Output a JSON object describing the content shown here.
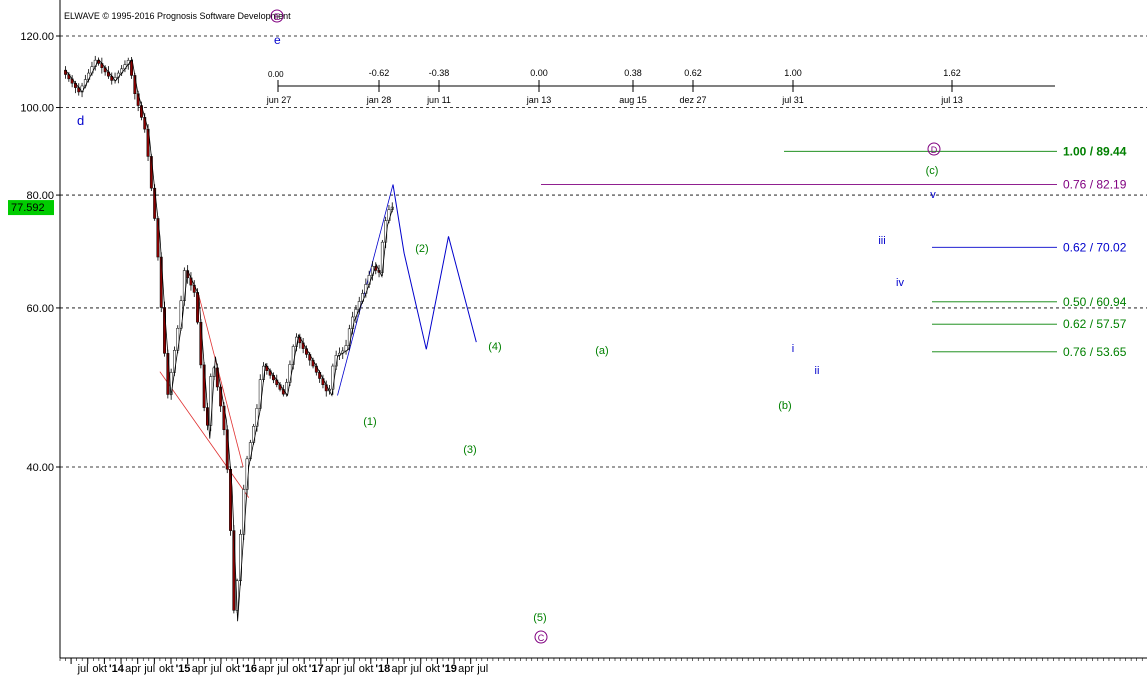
{
  "header": {
    "copyright": "ELWAVE © 1995-2016 Prognosis Software Development"
  },
  "colors": {
    "background": "#ffffff",
    "grid": "#000000",
    "candle_down": "#8b0000",
    "candle_up": "#000000",
    "wave_green": "#008000",
    "wave_blue": "#0000cc",
    "wave_purple": "#800080",
    "trendline_red": "#e03030",
    "target_green": "#008000",
    "target_purple": "#800080",
    "target_blue": "#0000cc",
    "price_tag_bg": "#00cc00"
  },
  "time_ruler": {
    "origin_label": "jun 27",
    "origin_value": "0.00",
    "marks": [
      {
        "ratio": "-0.62",
        "date": "jan 28"
      },
      {
        "ratio": "-0.38",
        "date": "jun 11"
      },
      {
        "ratio": "0.00",
        "date": "jan 13"
      },
      {
        "ratio": "0.38",
        "date": "aug 15"
      },
      {
        "ratio": "0.62",
        "date": "dez 27"
      },
      {
        "ratio": "1.00",
        "date": "jul 31"
      },
      {
        "ratio": "1.62",
        "date": "jul 13"
      }
    ]
  },
  "wave_labels": {
    "d_upper": "d",
    "e_upper": "e",
    "E_circled": "E",
    "w1": "(1)",
    "w2": "(2)",
    "w3": "(3)",
    "w4": "(4)",
    "w5": "(5)",
    "C_circled": "C",
    "wa": "(a)",
    "wb": "(b)",
    "wc": "(c)",
    "D_circled": "D",
    "i": "i",
    "ii": "ii",
    "iii": "iii",
    "iv": "iv",
    "v": "v"
  },
  "targets": [
    {
      "label": "1.00 / 89.44",
      "value": 89.44,
      "color": "#008000",
      "bold": true
    },
    {
      "label": "0.76 / 82.19",
      "value": 82.19,
      "color": "#800080",
      "bold": false
    },
    {
      "label": "0.62 / 70.02",
      "value": 70.02,
      "color": "#0000cc",
      "bold": false
    },
    {
      "label": "0.50 / 60.94",
      "value": 60.94,
      "color": "#008000",
      "bold": false
    },
    {
      "label": "0.62 / 57.57",
      "value": 57.57,
      "color": "#008000",
      "bold": false
    },
    {
      "label": "0.76 / 53.65",
      "value": 53.65,
      "color": "#008000",
      "bold": false
    }
  ],
  "chart_data": {
    "type": "line",
    "scale": "log",
    "ylim": [
      25,
      125
    ],
    "y_ticks": [
      "120.00",
      "100.00",
      "80.00",
      "60.00",
      "40.00"
    ],
    "y_tick_values": [
      120,
      100,
      80,
      60,
      40
    ],
    "current_price_label": "77.592",
    "current_price": 77.59,
    "x_tick_labels": [
      "jul",
      "okt",
      "'14",
      "apr",
      "jul",
      "okt",
      "'15",
      "apr",
      "jul",
      "okt",
      "'16",
      "apr",
      "jul",
      "okt",
      "'17",
      "apr",
      "jul",
      "okt",
      "'18",
      "apr",
      "jul",
      "okt",
      "'19",
      "apr",
      "jul"
    ],
    "x": [
      "2013-06",
      "2013-09",
      "2013-12",
      "2014-03",
      "2014-06",
      "2014-07",
      "2014-09",
      "2014-10",
      "2014-11",
      "2014-12",
      "2015-01",
      "2015-03",
      "2015-04",
      "2015-06",
      "2015-08",
      "2015-09",
      "2015-11",
      "2015-12",
      "2016-01",
      "2016-02",
      "2016-03",
      "2016-05",
      "2016-06",
      "2016-08",
      "2016-10",
      "2016-12",
      "2017-03",
      "2017-06",
      "2017-07",
      "2017-09",
      "2017-10",
      "2017-12",
      "2018-02",
      "2018-03",
      "2018-04",
      "2018-05"
    ],
    "series": [
      {
        "values": [
          110,
          104,
          113,
          107,
          113,
          104,
          94,
          82,
          72,
          58,
          48,
          58,
          66,
          62,
          43,
          53,
          45,
          38,
          27,
          33,
          40,
          46,
          52,
          50,
          48,
          56,
          52,
          48,
          53,
          54,
          58,
          62,
          67,
          65,
          74,
          77.59
        ]
      }
    ],
    "projection": {
      "x": [
        "2018-05",
        "2018-07",
        "2018-11",
        "2019-03",
        "2019-08"
      ],
      "values": [
        82.19,
        69,
        54,
        72,
        55
      ]
    },
    "trendlines": [
      {
        "from": {
          "x": "2014-11",
          "y": 51
        },
        "to": {
          "x": "2016-03",
          "y": 37
        }
      },
      {
        "from": {
          "x": "2015-06",
          "y": 62
        },
        "to": {
          "x": "2016-02",
          "y": 40
        }
      },
      {
        "from": {
          "x": "2017-07",
          "y": 48
        },
        "to": {
          "x": "2018-05",
          "y": 82.19
        }
      }
    ]
  }
}
